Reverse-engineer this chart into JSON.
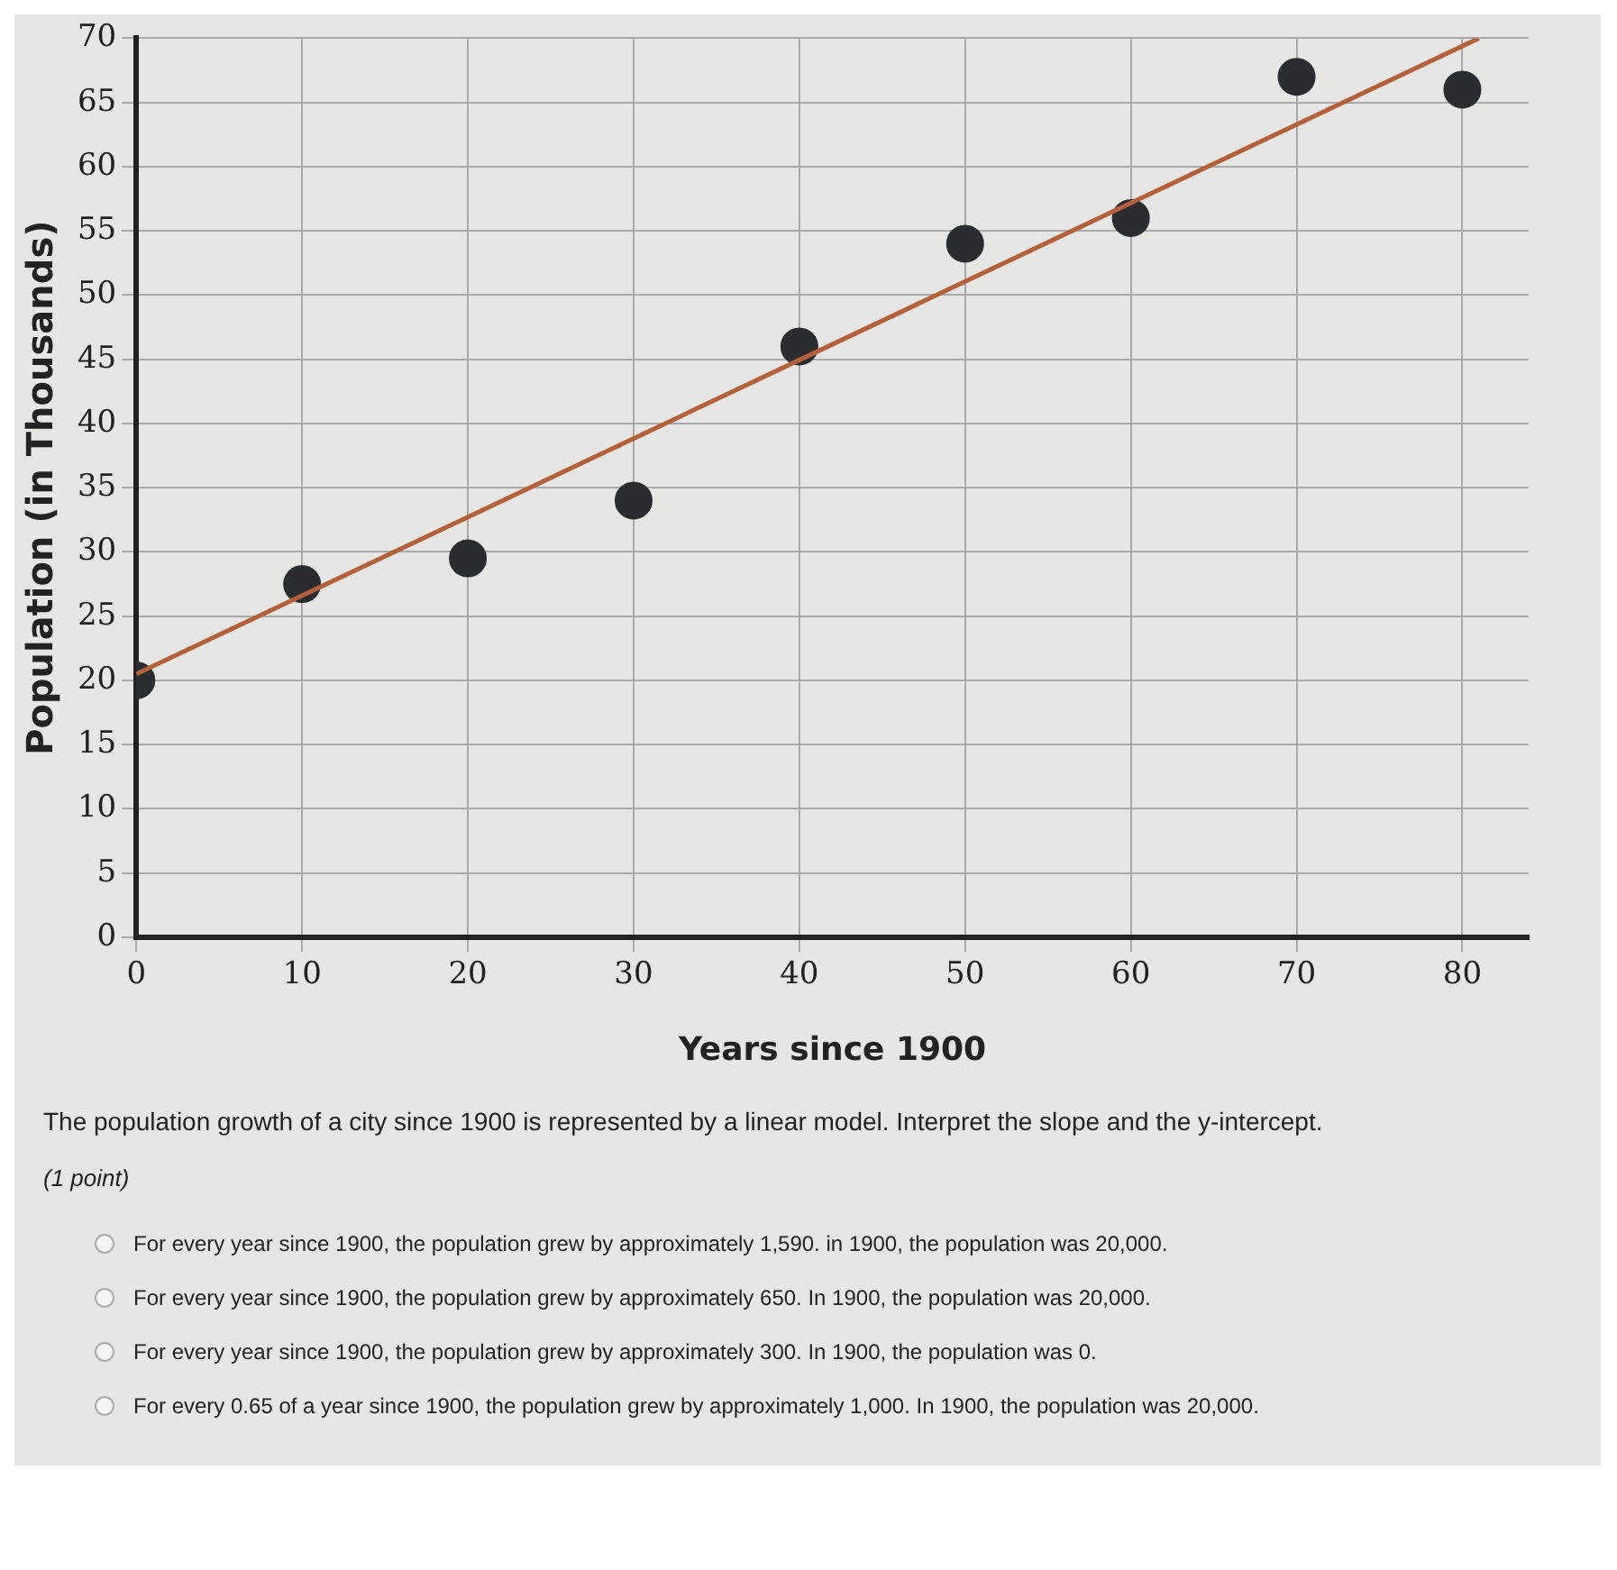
{
  "chart_data": {
    "type": "scatter",
    "xlabel": "Years since 1900",
    "ylabel": "Population (in Thousands)",
    "x": [
      0,
      10,
      20,
      30,
      40,
      50,
      60,
      70,
      80
    ],
    "series": [
      {
        "color": "#2a2d30",
        "values": [
          20,
          27.5,
          29.5,
          34,
          46,
          54,
          56,
          67,
          66
        ],
        "marker": "circle"
      },
      {
        "type": "line",
        "color": "#b5603a",
        "x": [
          0,
          81
        ],
        "values": [
          20.5,
          70
        ],
        "marker": "none"
      }
    ],
    "xlim": [
      0,
      84
    ],
    "xticks": [
      0,
      10,
      20,
      30,
      40,
      50,
      60,
      70,
      80
    ],
    "ylim": [
      0,
      70
    ],
    "yticks": [
      0,
      5,
      10,
      15,
      20,
      25,
      30,
      35,
      40,
      45,
      50,
      55,
      60,
      65,
      70
    ],
    "grid": true,
    "legend": false,
    "annotations": [
      "The population growth of a city since 1900 is represented by a linear model. Interpret the slope and the y-intercept.",
      "(1 point)",
      "For every year since 1900, the population grew by approximately 1,590. in 1900, the population was 20,000.",
      "For every year since 1900, the population grew by approximately 650. In 1900, the population was 20,000.",
      "For every year since 1900, the population grew by approximately 300. In 1900, the population was 0.",
      "For every 0.65 of a year since 1900, the population grew by approximately 1,000. In 1900, the population was 20,000."
    ]
  }
}
